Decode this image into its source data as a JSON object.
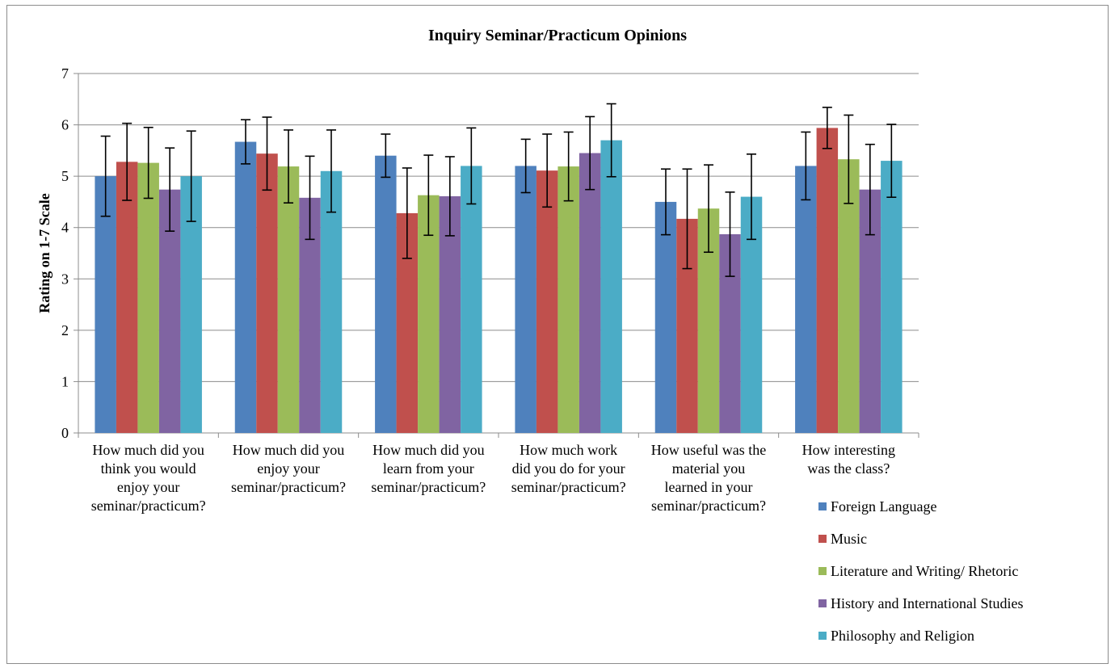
{
  "chart_data": {
    "type": "bar",
    "title": "Inquiry Seminar/Practicum Opinions",
    "xlabel": "",
    "ylabel": "Rating on 1-7 Scale",
    "ylim": [
      0,
      7
    ],
    "yticks": [
      0,
      1,
      2,
      3,
      4,
      5,
      6,
      7
    ],
    "grid": true,
    "legend_position": "bottom-right",
    "categories": [
      "How much did you think you would enjoy your seminar/practicum?",
      "How much did you enjoy your seminar/practicum?",
      "How much did you learn from your seminar/practicum?",
      "How much work did you do for your seminar/practicum?",
      "How useful was the material you learned in your seminar/practicum?",
      "How interesting was the class?"
    ],
    "category_lines": [
      [
        "How much did you",
        "think you would",
        "enjoy your",
        "seminar/practicum?"
      ],
      [
        "How much did you",
        "enjoy your",
        "seminar/practicum?"
      ],
      [
        "How much did you",
        "learn from your",
        "seminar/practicum?"
      ],
      [
        "How much work",
        "did you do for your",
        "seminar/practicum?"
      ],
      [
        "How useful was the",
        "material you",
        "learned in your",
        "seminar/practicum?"
      ],
      [
        "How interesting",
        "was the class?"
      ]
    ],
    "series": [
      {
        "name": "Foreign Language",
        "color": "#4f81bd",
        "values": [
          5.0,
          5.67,
          5.4,
          5.2,
          4.5,
          5.2
        ],
        "errors": [
          0.78,
          0.43,
          0.42,
          0.52,
          0.64,
          0.66
        ]
      },
      {
        "name": "Music",
        "color": "#c0504d",
        "values": [
          5.28,
          5.44,
          4.28,
          5.11,
          4.17,
          5.94
        ],
        "errors": [
          0.75,
          0.71,
          0.88,
          0.71,
          0.97,
          0.4
        ]
      },
      {
        "name": "Literature and Writing/ Rhetoric",
        "color": "#9bbb59",
        "values": [
          5.26,
          5.19,
          4.63,
          5.19,
          4.37,
          5.33
        ],
        "errors": [
          0.69,
          0.71,
          0.78,
          0.67,
          0.85,
          0.86
        ]
      },
      {
        "name": "History and International Studies",
        "color": "#8064a2",
        "values": [
          4.74,
          4.58,
          4.61,
          5.45,
          3.87,
          4.74
        ],
        "errors": [
          0.81,
          0.81,
          0.77,
          0.71,
          0.82,
          0.88
        ]
      },
      {
        "name": "Philosophy and Religion",
        "color": "#4bacc6",
        "values": [
          5.0,
          5.1,
          5.2,
          5.7,
          4.6,
          5.3
        ],
        "errors": [
          0.88,
          0.8,
          0.74,
          0.71,
          0.83,
          0.71
        ]
      }
    ]
  }
}
